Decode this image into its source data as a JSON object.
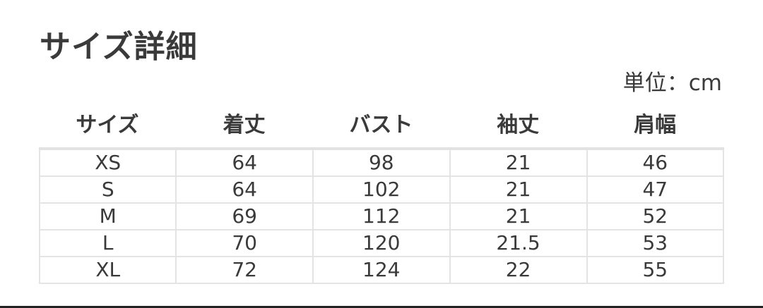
{
  "title": "サイズ詳細",
  "unit": "単位：cm",
  "table": {
    "headers": [
      "サイズ",
      "着丈",
      "バスト",
      "袖丈",
      "肩幅"
    ],
    "rows": [
      [
        "XS",
        "64",
        "98",
        "21",
        "46"
      ],
      [
        "S",
        "64",
        "102",
        "21",
        "47"
      ],
      [
        "M",
        "69",
        "112",
        "21",
        "52"
      ],
      [
        "L",
        "70",
        "120",
        "21.5",
        "53"
      ],
      [
        "XL",
        "72",
        "124",
        "22",
        "55"
      ]
    ]
  }
}
